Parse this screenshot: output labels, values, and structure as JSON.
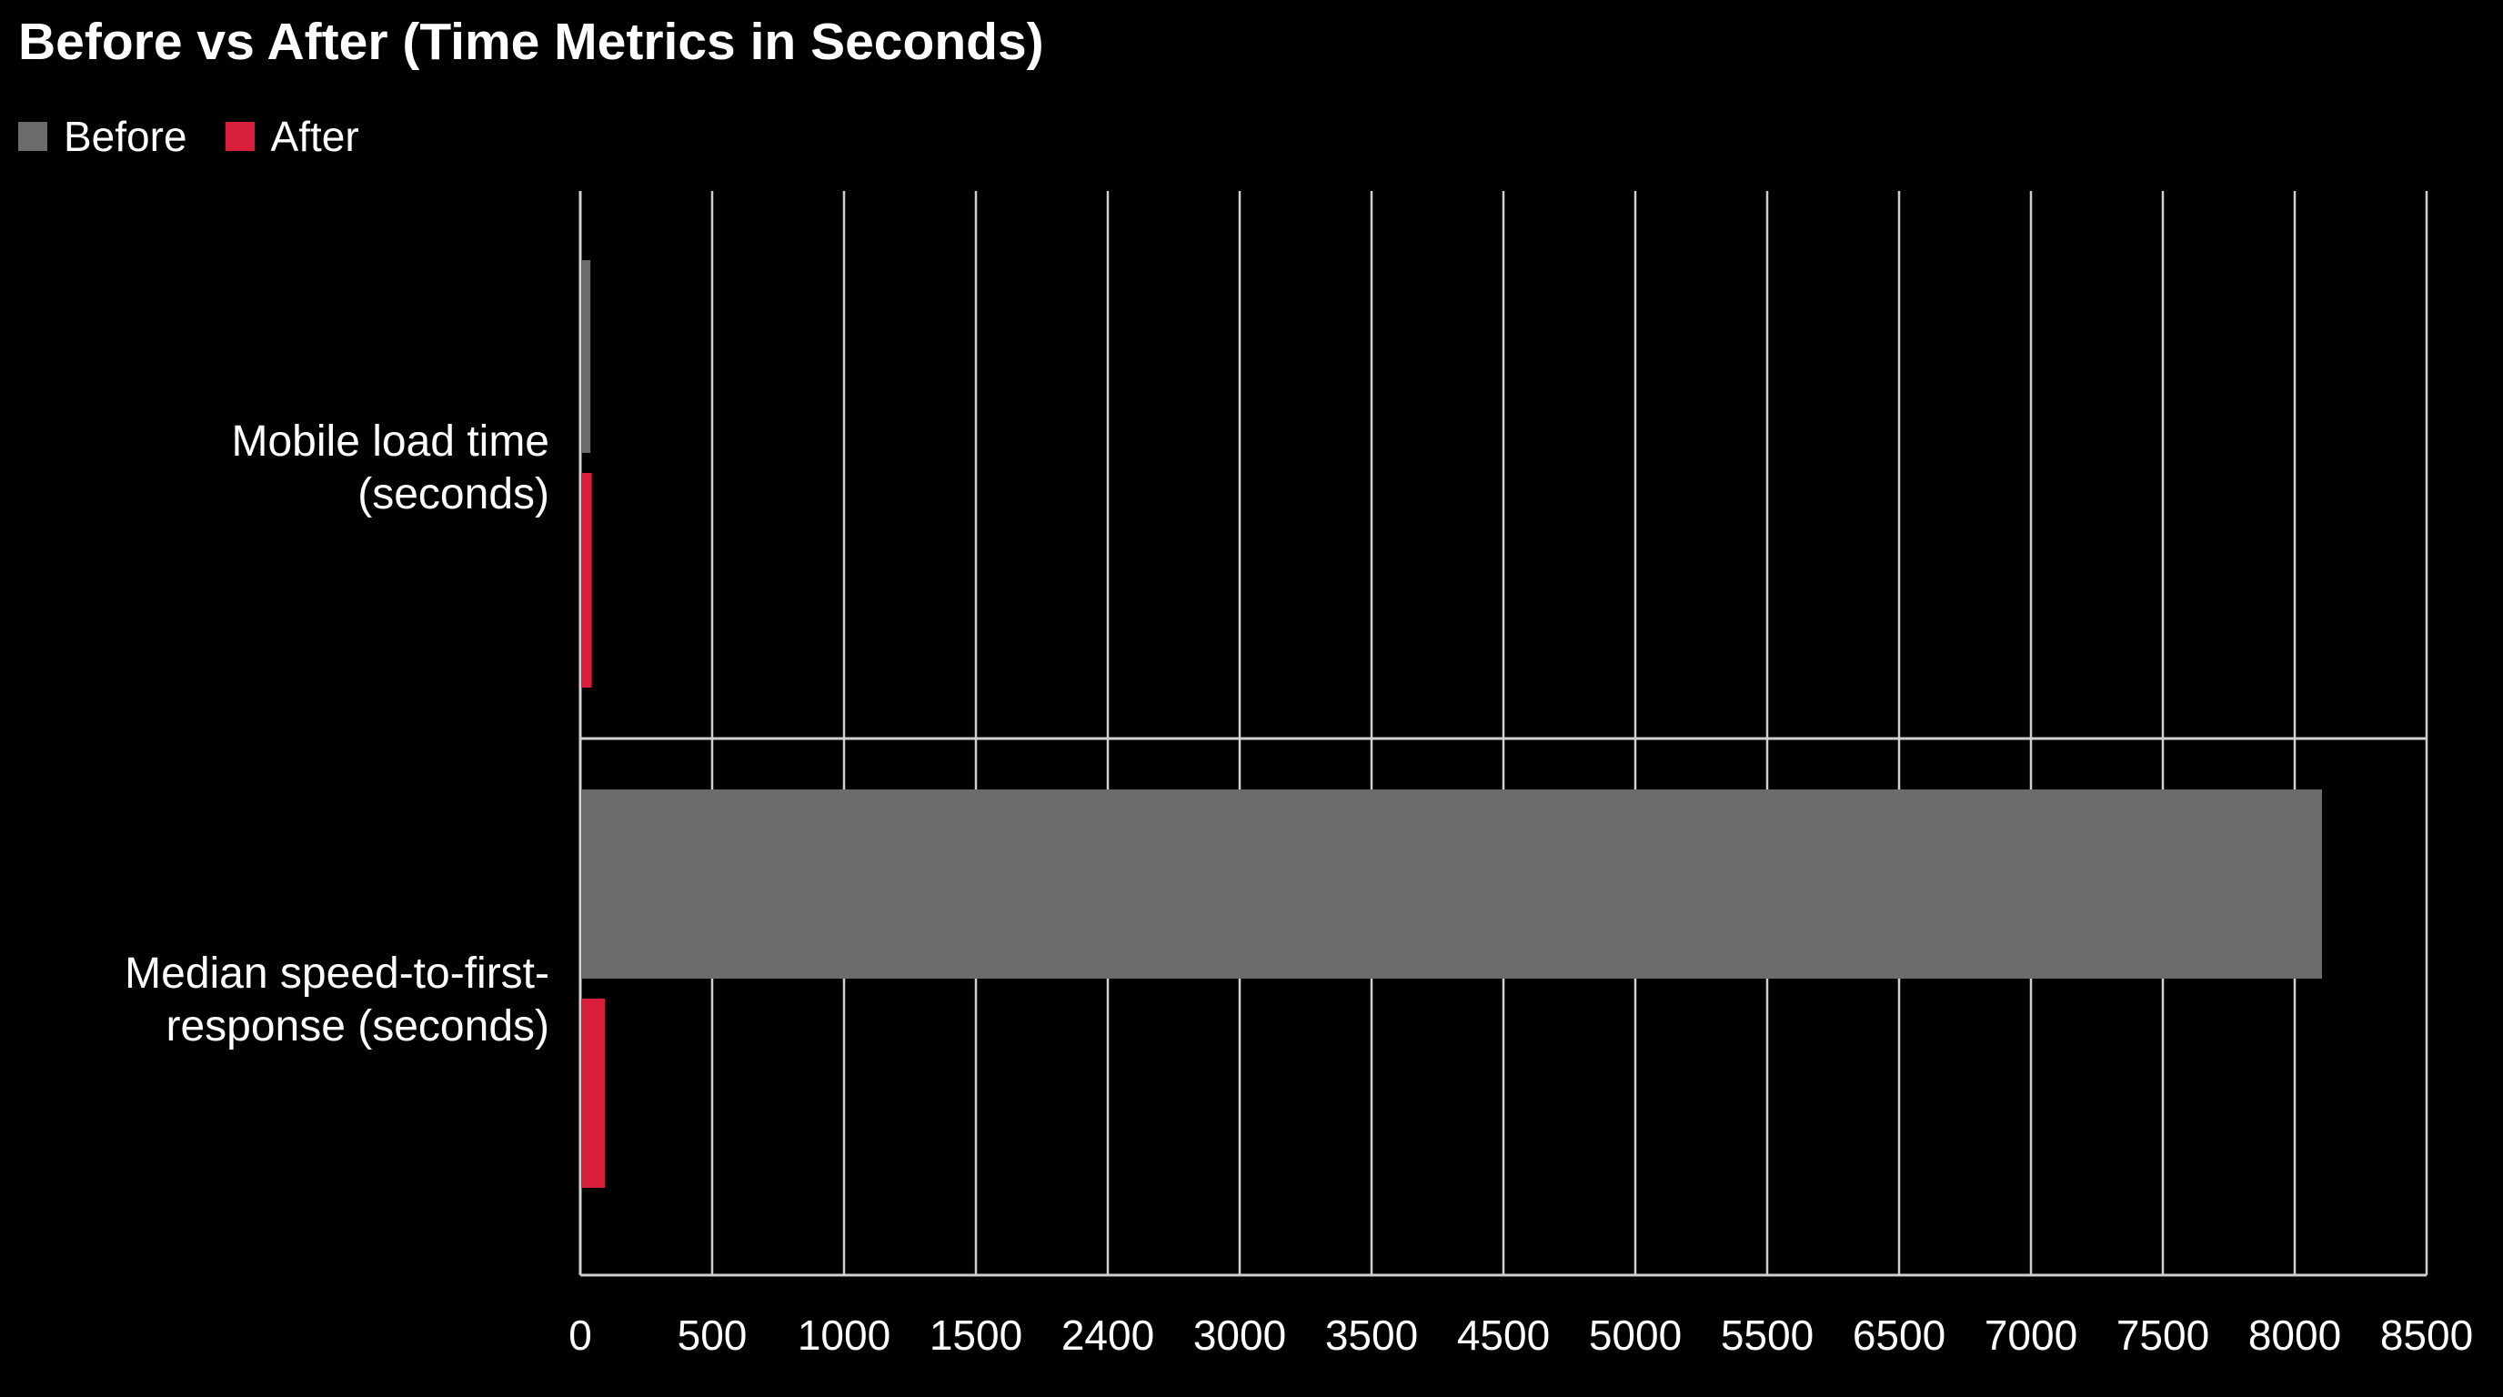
{
  "chart_data": {
    "type": "bar",
    "orientation": "horizontal",
    "title": "Before vs After (Time Metrics in Seconds)",
    "categories": [
      "Mobile load time\n(seconds)",
      "Median speed-to-first-\nresponse (seconds)"
    ],
    "series": [
      {
        "name": "Before",
        "color": "#6b6b6b",
        "values": [
          35,
          8100
        ]
      },
      {
        "name": "After",
        "color": "#d81e3a",
        "values": [
          40,
          90
        ]
      }
    ],
    "x_tick_labels": [
      "0",
      "500",
      "1000",
      "1500",
      "2400",
      "3000",
      "3500",
      "4500",
      "5000",
      "5500",
      "6500",
      "7000",
      "7500",
      "8000",
      "8500"
    ],
    "xlim": [
      0,
      8500
    ],
    "grid": true,
    "legend_position": "top-left"
  }
}
